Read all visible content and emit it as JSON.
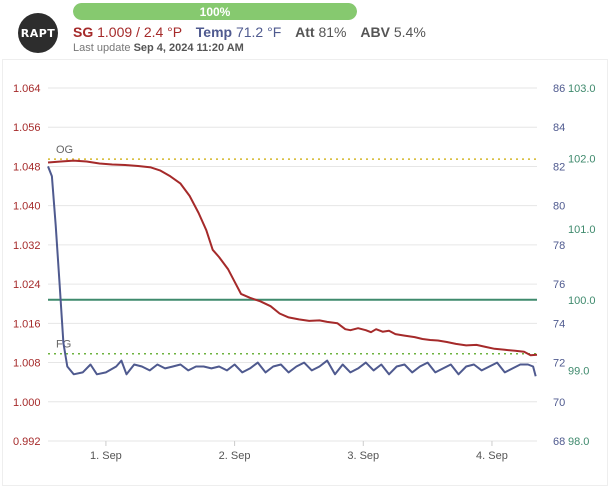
{
  "header": {
    "logo_text": "RAPT",
    "progress": {
      "label": "100%",
      "percent": 100
    },
    "sg": {
      "label": "SG",
      "value": "1.009 / 2.4 °P"
    },
    "temp": {
      "label": "Temp",
      "value": "71.2 °F"
    },
    "att": {
      "label": "Att",
      "value": "81%"
    },
    "abv": {
      "label": "ABV",
      "value": "5.4%"
    },
    "last_update": {
      "prefix": "Last update",
      "value": "Sep 4, 2024 11:20 AM"
    }
  },
  "colors": {
    "sg": "#a52a2a",
    "temp": "#4f5a8f",
    "battery": "#3f8a6d",
    "og_line": "#d4b72a",
    "fg_line": "#6db33f",
    "grid": "#e6e6e6"
  },
  "chart_data": {
    "type": "line",
    "x_tick_labels": [
      "1. Sep",
      "2. Sep",
      "3. Sep",
      "4. Sep"
    ],
    "x_range_days": [
      0.55,
      4.35
    ],
    "annotations": [
      {
        "label": "OG",
        "y": 1.0495,
        "axis": "sg"
      },
      {
        "label": "FG",
        "y": 1.0098,
        "axis": "sg"
      }
    ],
    "axes": {
      "sg": {
        "ticks": [
          "1.064",
          "1.056",
          "1.048",
          "1.040",
          "1.032",
          "1.024",
          "1.016",
          "1.008",
          "1.000",
          "0.992"
        ],
        "range": [
          0.992,
          1.064
        ]
      },
      "temp": {
        "ticks": [
          "86",
          "84",
          "82",
          "80",
          "78",
          "76",
          "74",
          "72",
          "70",
          "68"
        ],
        "range": [
          68,
          86
        ]
      },
      "battery": {
        "ticks": [
          "103.0",
          "102.0",
          "101.0",
          "100.0",
          "99.0",
          "98.0"
        ],
        "range": [
          98,
          103
        ]
      }
    },
    "series": [
      {
        "axis": "sg",
        "points": [
          [
            0.55,
            1.0488
          ],
          [
            0.65,
            1.049
          ],
          [
            0.75,
            1.0492
          ],
          [
            0.85,
            1.049
          ],
          [
            0.95,
            1.0486
          ],
          [
            1.05,
            1.0484
          ],
          [
            1.15,
            1.0483
          ],
          [
            1.25,
            1.0481
          ],
          [
            1.35,
            1.0478
          ],
          [
            1.42,
            1.0472
          ],
          [
            1.5,
            1.046
          ],
          [
            1.58,
            1.0445
          ],
          [
            1.65,
            1.042
          ],
          [
            1.72,
            1.0385
          ],
          [
            1.78,
            1.035
          ],
          [
            1.83,
            1.031
          ],
          [
            1.88,
            1.0295
          ],
          [
            1.95,
            1.027
          ],
          [
            2.0,
            1.0245
          ],
          [
            2.05,
            1.022
          ],
          [
            2.12,
            1.0212
          ],
          [
            2.2,
            1.0205
          ],
          [
            2.28,
            1.0195
          ],
          [
            2.35,
            1.018
          ],
          [
            2.42,
            1.0172
          ],
          [
            2.5,
            1.0168
          ],
          [
            2.58,
            1.0165
          ],
          [
            2.66,
            1.0166
          ],
          [
            2.72,
            1.0163
          ],
          [
            2.8,
            1.016
          ],
          [
            2.86,
            1.0148
          ],
          [
            2.9,
            1.0146
          ],
          [
            2.96,
            1.015
          ],
          [
            3.02,
            1.0146
          ],
          [
            3.06,
            1.0142
          ],
          [
            3.1,
            1.0148
          ],
          [
            3.15,
            1.0143
          ],
          [
            3.2,
            1.0145
          ],
          [
            3.25,
            1.0138
          ],
          [
            3.32,
            1.0135
          ],
          [
            3.4,
            1.0132
          ],
          [
            3.46,
            1.0128
          ],
          [
            3.52,
            1.0126
          ],
          [
            3.58,
            1.0125
          ],
          [
            3.65,
            1.0122
          ],
          [
            3.72,
            1.0118
          ],
          [
            3.8,
            1.0115
          ],
          [
            3.88,
            1.0116
          ],
          [
            3.95,
            1.0112
          ],
          [
            4.02,
            1.0108
          ],
          [
            4.1,
            1.0106
          ],
          [
            4.18,
            1.0104
          ],
          [
            4.25,
            1.0102
          ],
          [
            4.3,
            1.0095
          ],
          [
            4.35,
            1.0096
          ]
        ]
      },
      {
        "axis": "temp",
        "points": [
          [
            0.55,
            82.0
          ],
          [
            0.58,
            81.5
          ],
          [
            0.61,
            79.0
          ],
          [
            0.64,
            76.0
          ],
          [
            0.67,
            73.0
          ],
          [
            0.7,
            71.8
          ],
          [
            0.75,
            71.4
          ],
          [
            0.82,
            71.5
          ],
          [
            0.88,
            71.9
          ],
          [
            0.93,
            71.4
          ],
          [
            1.0,
            71.5
          ],
          [
            1.08,
            71.8
          ],
          [
            1.12,
            72.1
          ],
          [
            1.16,
            71.4
          ],
          [
            1.22,
            71.9
          ],
          [
            1.28,
            71.8
          ],
          [
            1.34,
            71.6
          ],
          [
            1.4,
            71.9
          ],
          [
            1.46,
            71.7
          ],
          [
            1.52,
            71.8
          ],
          [
            1.58,
            71.9
          ],
          [
            1.64,
            71.6
          ],
          [
            1.7,
            71.8
          ],
          [
            1.76,
            71.8
          ],
          [
            1.82,
            71.7
          ],
          [
            1.88,
            71.8
          ],
          [
            1.94,
            71.6
          ],
          [
            2.0,
            71.9
          ],
          [
            2.06,
            71.5
          ],
          [
            2.12,
            71.7
          ],
          [
            2.18,
            72.0
          ],
          [
            2.24,
            71.5
          ],
          [
            2.3,
            71.8
          ],
          [
            2.36,
            71.9
          ],
          [
            2.42,
            71.5
          ],
          [
            2.48,
            71.8
          ],
          [
            2.54,
            72.0
          ],
          [
            2.6,
            71.6
          ],
          [
            2.66,
            71.8
          ],
          [
            2.72,
            72.1
          ],
          [
            2.78,
            71.4
          ],
          [
            2.84,
            71.9
          ],
          [
            2.9,
            71.5
          ],
          [
            2.96,
            71.7
          ],
          [
            3.02,
            72.0
          ],
          [
            3.08,
            71.6
          ],
          [
            3.14,
            71.9
          ],
          [
            3.2,
            71.4
          ],
          [
            3.26,
            71.8
          ],
          [
            3.32,
            71.9
          ],
          [
            3.38,
            71.5
          ],
          [
            3.44,
            71.8
          ],
          [
            3.5,
            72.0
          ],
          [
            3.56,
            71.5
          ],
          [
            3.62,
            71.7
          ],
          [
            3.68,
            71.9
          ],
          [
            3.74,
            71.4
          ],
          [
            3.8,
            71.8
          ],
          [
            3.86,
            71.9
          ],
          [
            3.92,
            71.6
          ],
          [
            3.98,
            71.8
          ],
          [
            4.04,
            72.0
          ],
          [
            4.1,
            71.5
          ],
          [
            4.16,
            71.7
          ],
          [
            4.22,
            71.9
          ],
          [
            4.28,
            71.9
          ],
          [
            4.32,
            71.8
          ],
          [
            4.34,
            71.3
          ]
        ]
      },
      {
        "axis": "battery",
        "points": [
          [
            0.55,
            100.0
          ],
          [
            4.35,
            100.0
          ]
        ]
      }
    ]
  }
}
